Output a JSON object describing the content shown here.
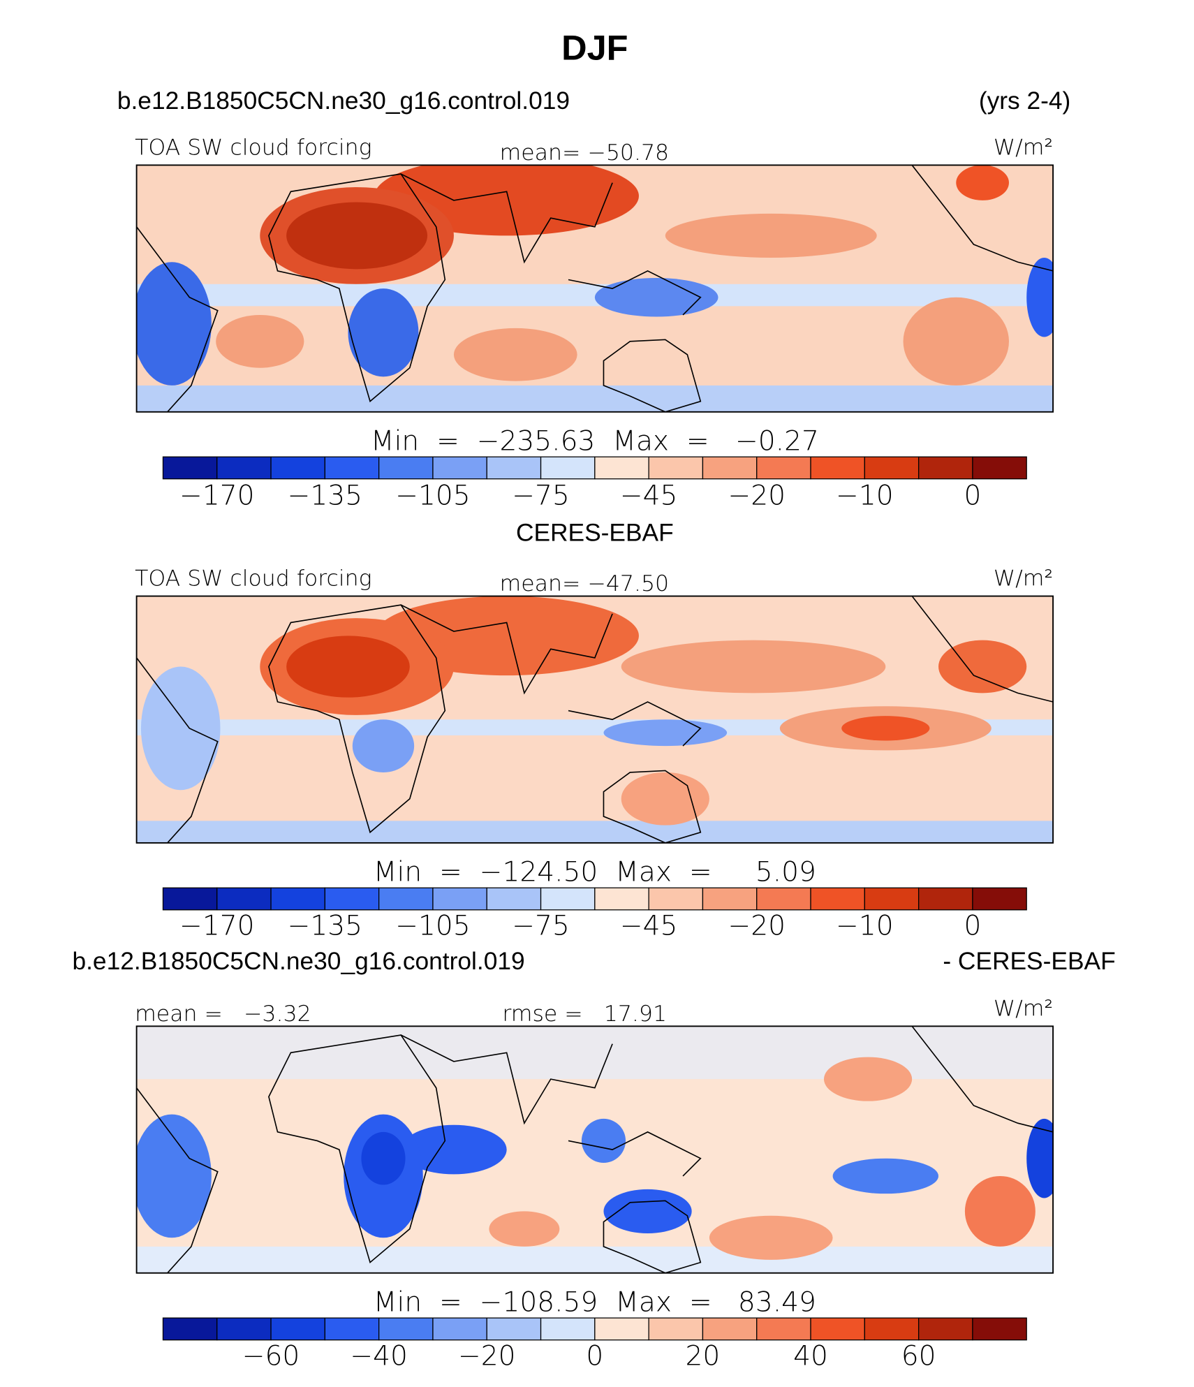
{
  "title": "DJF",
  "colorbar_colors": [
    "#08189a",
    "#0c2cc0",
    "#1442de",
    "#2a5cf0",
    "#4a7df2",
    "#7aa0f5",
    "#a9c4f8",
    "#d4e4fb",
    "#fde4d3",
    "#fbc6ab",
    "#f7a27f",
    "#f47a53",
    "#ef5326",
    "#d83c12",
    "#b0250c",
    "#850d08"
  ],
  "panels": [
    {
      "header_left": "b.e12.B1850C5CN.ne30_g16.control.019",
      "header_right": "(yrs 2-4)",
      "left_label": "TOA SW cloud forcing",
      "center_label": "mean= −50.78",
      "units": "W/m²",
      "min_max": "Min  =  −235.63  Max  =   −0.27",
      "colorbar_labels": [
        "−170",
        "−135",
        "−105",
        "−75",
        "−45",
        "−20",
        "−10",
        "0"
      ]
    },
    {
      "header": "CERES-EBAF",
      "left_label": "TOA SW cloud forcing",
      "center_label": "mean= −47.50",
      "units": "W/m²",
      "min_max": "Min  =  −124.50  Max  =     5.09",
      "colorbar_labels": [
        "−170",
        "−135",
        "−105",
        "−75",
        "−45",
        "−20",
        "−10",
        "0"
      ]
    },
    {
      "header_left": "b.e12.B1850C5CN.ne30_g16.control.019",
      "header_right": "- CERES-EBAF",
      "left_label": "mean =   −3.32",
      "center_label": "rmse =   17.91",
      "units": "W/m²",
      "min_max": "Min  =  −108.59  Max  =   83.49",
      "colorbar_labels": [
        "−60",
        "−40",
        "−20",
        "0",
        "20",
        "40",
        "60"
      ]
    }
  ]
}
